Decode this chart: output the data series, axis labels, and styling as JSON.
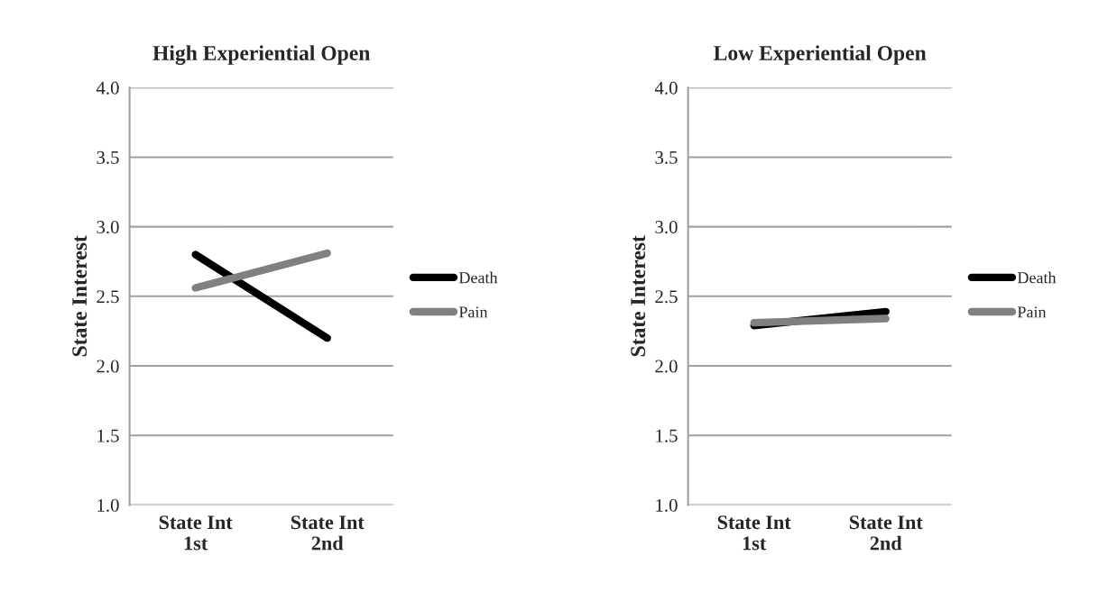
{
  "chart_data": [
    {
      "type": "line",
      "title": "High Experiential Open",
      "ylabel": "State Interest",
      "categories": [
        "State Int\n1st",
        "State Int\n2nd"
      ],
      "series": [
        {
          "name": "Death",
          "color": "#000000",
          "values": [
            2.8,
            2.2
          ]
        },
        {
          "name": "Pain",
          "color": "#808080",
          "values": [
            2.56,
            2.81
          ]
        }
      ],
      "ylim": [
        1.0,
        4.0
      ],
      "yticks": [
        {
          "value": 1.0,
          "label": "1.0"
        },
        {
          "value": 1.5,
          "label": "1.5"
        },
        {
          "value": 2.0,
          "label": "2.0"
        },
        {
          "value": 2.5,
          "label": "2.5"
        },
        {
          "value": 3.0,
          "label": "3.0"
        },
        {
          "value": 3.5,
          "label": "3.5"
        },
        {
          "value": 4.0,
          "label": "4.0"
        }
      ],
      "grid": "y",
      "legend": "right",
      "marker": "none",
      "line_style": "solid"
    },
    {
      "type": "line",
      "title": "Low Experiential Open",
      "ylabel": "State Interest",
      "categories": [
        "State Int\n1st",
        "State Int\n2nd"
      ],
      "series": [
        {
          "name": "Death",
          "color": "#000000",
          "values": [
            2.29,
            2.39
          ]
        },
        {
          "name": "Pain",
          "color": "#808080",
          "values": [
            2.31,
            2.34
          ]
        }
      ],
      "ylim": [
        1.0,
        4.0
      ],
      "yticks": [
        {
          "value": 1.0,
          "label": "1.0"
        },
        {
          "value": 1.5,
          "label": "1.5"
        },
        {
          "value": 2.0,
          "label": "2.0"
        },
        {
          "value": 2.5,
          "label": "2.5"
        },
        {
          "value": 3.0,
          "label": "3.0"
        },
        {
          "value": 3.5,
          "label": "3.5"
        },
        {
          "value": 4.0,
          "label": "4.0"
        }
      ],
      "grid": "y",
      "legend": "right",
      "marker": "none",
      "line_style": "solid"
    }
  ]
}
